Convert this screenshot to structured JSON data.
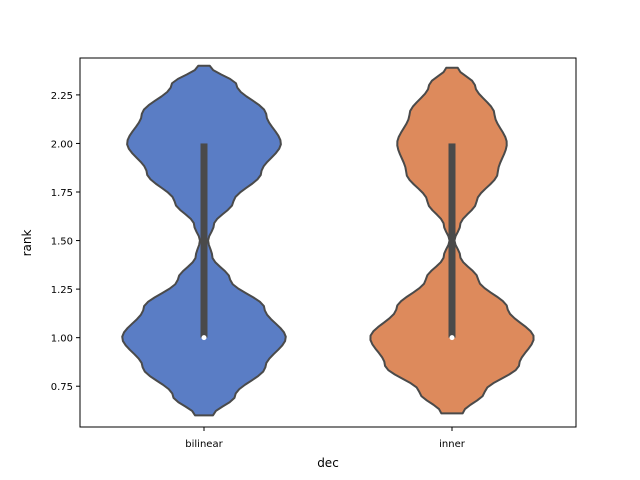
{
  "chart_data": {
    "type": "violin",
    "xlabel": "dec",
    "ylabel": "rank",
    "categories": [
      "bilinear",
      "inner"
    ],
    "ylim": [
      0.54,
      2.44
    ],
    "yticks": [
      0.75,
      1.0,
      1.25,
      1.5,
      1.75,
      2.0,
      2.25
    ],
    "ytick_labels": [
      "0.75",
      "1.00",
      "1.25",
      "1.50",
      "1.75",
      "2.00",
      "2.25"
    ],
    "grid": false,
    "violins": [
      {
        "category": "bilinear",
        "color": "#5A7DC5",
        "y_min": 0.6,
        "y_max": 2.4,
        "median": 1.0,
        "q1": 1.0,
        "q3": 2.0,
        "density": [
          [
            0.6,
            0.11
          ],
          [
            0.7,
            0.38
          ],
          [
            0.85,
            0.75
          ],
          [
            1.0,
            1.0
          ],
          [
            1.15,
            0.74
          ],
          [
            1.3,
            0.32
          ],
          [
            1.42,
            0.1
          ],
          [
            1.5,
            0.05
          ],
          [
            1.58,
            0.12
          ],
          [
            1.7,
            0.36
          ],
          [
            1.85,
            0.7
          ],
          [
            2.0,
            0.94
          ],
          [
            2.15,
            0.76
          ],
          [
            2.3,
            0.4
          ],
          [
            2.4,
            0.07
          ]
        ]
      },
      {
        "category": "inner",
        "color": "#DD8A5C",
        "y_min": 0.61,
        "y_max": 2.39,
        "median": 1.0,
        "q1": 1.0,
        "q3": 2.0,
        "density": [
          [
            0.61,
            0.13
          ],
          [
            0.72,
            0.4
          ],
          [
            0.86,
            0.82
          ],
          [
            1.0,
            1.0
          ],
          [
            1.15,
            0.68
          ],
          [
            1.3,
            0.32
          ],
          [
            1.42,
            0.1
          ],
          [
            1.5,
            0.03
          ],
          [
            1.58,
            0.1
          ],
          [
            1.7,
            0.3
          ],
          [
            1.85,
            0.56
          ],
          [
            2.0,
            0.67
          ],
          [
            2.15,
            0.52
          ],
          [
            2.3,
            0.28
          ],
          [
            2.39,
            0.07
          ]
        ]
      }
    ]
  }
}
